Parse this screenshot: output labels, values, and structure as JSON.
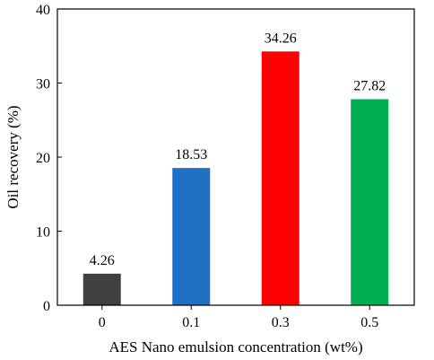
{
  "chart_data": {
    "type": "bar",
    "categories": [
      "0",
      "0.1",
      "0.3",
      "0.5"
    ],
    "values": [
      4.26,
      18.53,
      34.26,
      27.82
    ],
    "data_labels": [
      "4.26",
      "18.53",
      "34.26",
      "27.82"
    ],
    "colors": [
      "#404040",
      "#1f6fc5",
      "#ff0000",
      "#00b050"
    ],
    "title": "",
    "xlabel": "AES Nano emulsion concentration (wt%)",
    "ylabel": "Oil recovery (%)",
    "ylim": [
      0,
      40
    ],
    "yticks": [
      0,
      10,
      20,
      30,
      40
    ],
    "grid": false
  }
}
